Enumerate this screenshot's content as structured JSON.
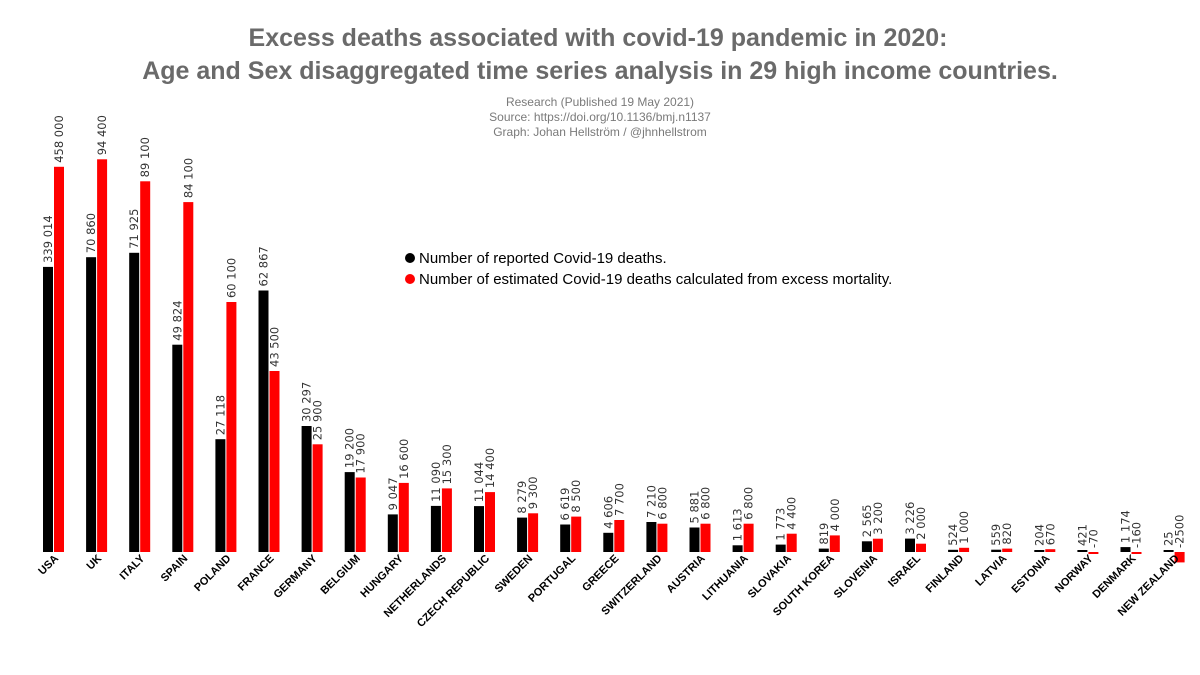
{
  "header": {
    "title_line1": "Excess deaths associated with covid-19 pandemic in 2020:",
    "title_line2": "Age and Sex disaggregated time series analysis in 29 high income countries.",
    "sub_line1": "Research (Published 19 May 2021)",
    "sub_line2": "Source: https://doi.org/10.1136/bmj.n1137",
    "sub_line3": "Graph: Johan Hellström / @jhnhellstrom"
  },
  "colors": {
    "reported": "#000000",
    "estimated": "#ff0000"
  },
  "chart_data": {
    "type": "bar",
    "title": "Excess deaths associated with covid-19 pandemic in 2020: Age and Sex disaggregated time series analysis in 29 high income countries.",
    "legend_position": "center",
    "grid": false,
    "categories": [
      "USA",
      "UK",
      "ITALY",
      "SPAIN",
      "POLAND",
      "FRANCE",
      "GERMANY",
      "BELGIUM",
      "HUNGARY",
      "NETHERLANDS",
      "CZECH REPUBLIC",
      "SWEDEN",
      "PORTUGAL",
      "GREECE",
      "SWITZERLAND",
      "AUSTRIA",
      "LITHUANIA",
      "SLOVAKIA",
      "SOUTH KOREA",
      "SLOVENIA",
      "ISRAEL",
      "FINLAND",
      "LATVIA",
      "ESTONIA",
      "NORWAY",
      "DENMARK",
      "NEW ZEALAND"
    ],
    "series": [
      {
        "name": "Number of reported Covid-19 deaths.",
        "values": [
          339014,
          70860,
          71925,
          49824,
          27118,
          62867,
          30297,
          19200,
          9047,
          11090,
          11044,
          8279,
          6619,
          4606,
          7210,
          5881,
          1613,
          1773,
          819,
          2565,
          3226,
          524,
          559,
          204,
          421,
          1174,
          25
        ],
        "labels": [
          "339 014",
          "70 860",
          "71 925",
          "49 824",
          "27 118",
          "62 867",
          "30 297",
          "19 200",
          "9 047",
          "11 090",
          "11 044",
          "8 279",
          "6 619",
          "4 606",
          "7 210",
          "5 881",
          "1 613",
          "1 773",
          "819",
          "2 565",
          "3 226",
          "524",
          "559",
          "204",
          "421",
          "1 174",
          "25"
        ]
      },
      {
        "name": "Number of estimated Covid-19 deaths calculated from excess mortality.",
        "values": [
          458000,
          94400,
          89100,
          84100,
          60100,
          43500,
          25900,
          17900,
          16600,
          15300,
          14400,
          9300,
          8500,
          7700,
          6800,
          6800,
          6800,
          4400,
          4000,
          3200,
          2000,
          1000,
          820,
          670,
          -70,
          -160,
          -2500
        ],
        "labels": [
          "458 000",
          "94 400",
          "89 100",
          "84 100",
          "60 100",
          "43 500",
          "25 900",
          "17 900",
          "16 600",
          "15 300",
          "14 400",
          "9 300",
          "8 500",
          "7 700",
          "6 800",
          "6 800",
          "6 800",
          "4 400",
          "4 000",
          "3 200",
          "2 000",
          "1 000",
          "820",
          "670",
          "-70",
          "-160",
          "-2500"
        ]
      }
    ]
  }
}
